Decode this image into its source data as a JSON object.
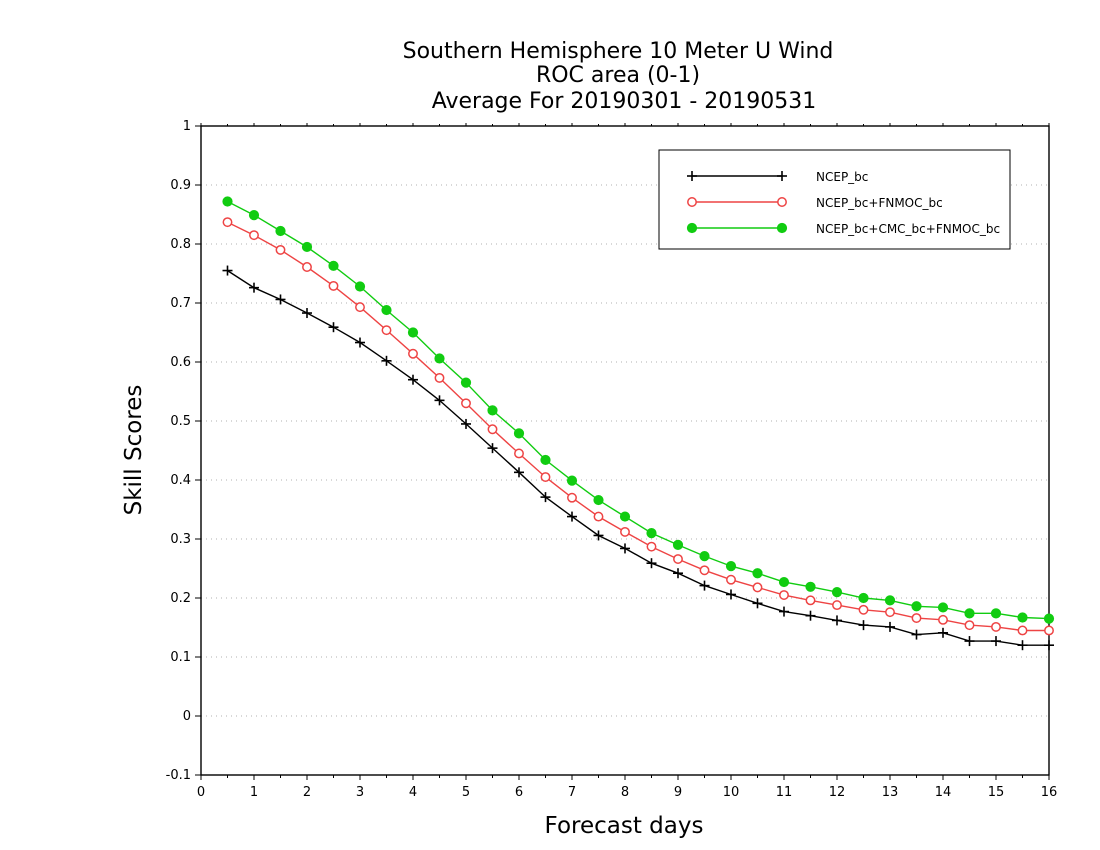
{
  "chart_data": {
    "type": "line",
    "title": [
      "Southern Hemisphere 10 Meter U Wind",
      "ROC area (0-1)",
      "Average For 20190301 - 20190531"
    ],
    "xlabel": "Forecast days",
    "ylabel": "Skill Scores",
    "xlim": [
      0,
      16
    ],
    "ylim": [
      -0.1,
      1
    ],
    "xticks": [
      "0",
      "1",
      "2",
      "3",
      "4",
      "5",
      "6",
      "7",
      "8",
      "9",
      "10",
      "11",
      "12",
      "13",
      "14",
      "15",
      "16"
    ],
    "yticks": [
      "-0.1",
      "0",
      "0.1",
      "0.2",
      "0.3",
      "0.4",
      "0.5",
      "0.6",
      "0.7",
      "0.8",
      "0.9",
      "1"
    ],
    "grid": "horizontal-dotted",
    "legend_position": "top-right",
    "x": [
      0.5,
      1,
      1.5,
      2,
      2.5,
      3,
      3.5,
      4,
      4.5,
      5,
      5.5,
      6,
      6.5,
      7,
      7.5,
      8,
      8.5,
      9,
      9.5,
      10,
      10.5,
      11,
      11.5,
      12,
      12.5,
      13,
      13.5,
      14,
      14.5,
      15,
      15.5,
      16
    ],
    "series": [
      {
        "name": "NCEP_bc",
        "color": "#000000",
        "marker": "plus",
        "values": [
          0.755,
          0.726,
          0.706,
          0.683,
          0.659,
          0.633,
          0.602,
          0.57,
          0.535,
          0.495,
          0.454,
          0.413,
          0.371,
          0.338,
          0.306,
          0.284,
          0.259,
          0.242,
          0.221,
          0.206,
          0.191,
          0.177,
          0.17,
          0.162,
          0.154,
          0.151,
          0.138,
          0.141,
          0.127,
          0.127,
          0.12,
          0.12
        ]
      },
      {
        "name": "NCEP_bc+FNMOC_bc",
        "color": "#ee4444",
        "marker": "open-circle",
        "values": [
          0.837,
          0.815,
          0.79,
          0.761,
          0.729,
          0.693,
          0.654,
          0.614,
          0.573,
          0.53,
          0.486,
          0.445,
          0.405,
          0.37,
          0.338,
          0.312,
          0.287,
          0.266,
          0.247,
          0.231,
          0.218,
          0.205,
          0.196,
          0.188,
          0.18,
          0.176,
          0.166,
          0.163,
          0.154,
          0.151,
          0.145,
          0.145
        ]
      },
      {
        "name": "NCEP_bc+CMC_bc+FNMOC_bc",
        "color": "#11cc11",
        "marker": "filled-circle",
        "values": [
          0.872,
          0.849,
          0.822,
          0.795,
          0.763,
          0.728,
          0.688,
          0.65,
          0.606,
          0.565,
          0.518,
          0.479,
          0.434,
          0.399,
          0.366,
          0.338,
          0.31,
          0.29,
          0.271,
          0.254,
          0.242,
          0.227,
          0.219,
          0.21,
          0.2,
          0.196,
          0.186,
          0.184,
          0.174,
          0.174,
          0.167,
          0.165
        ]
      }
    ]
  }
}
